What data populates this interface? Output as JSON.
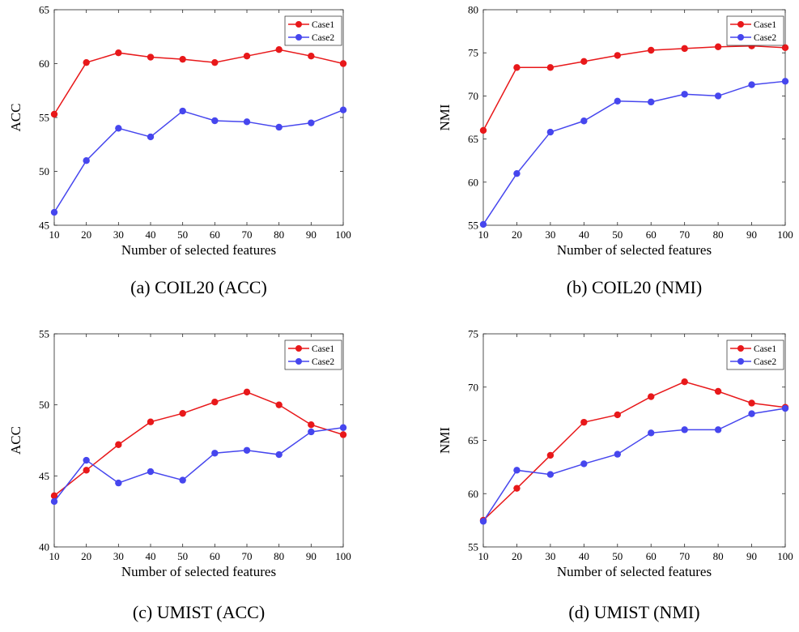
{
  "chart_data": [
    {
      "type": "line",
      "caption": "(a) COIL20 (ACC)",
      "xlabel": "Number of selected features",
      "ylabel": "ACC",
      "xlim": [
        10,
        100
      ],
      "ylim": [
        45,
        65
      ],
      "x": [
        10,
        20,
        30,
        40,
        50,
        60,
        70,
        80,
        90,
        100
      ],
      "xticks": [
        "10",
        "20",
        "30",
        "40",
        "50",
        "60",
        "70",
        "80",
        "90",
        "100"
      ],
      "yticks": [
        "45",
        "50",
        "55",
        "60",
        "65"
      ],
      "grid": false,
      "legend": "top-right",
      "series": [
        {
          "name": "Case1",
          "color": "#e8181a",
          "values": [
            55.3,
            60.1,
            61.0,
            60.6,
            60.4,
            60.1,
            60.7,
            61.3,
            60.7,
            60.0
          ]
        },
        {
          "name": "Case2",
          "color": "#4646ee",
          "values": [
            46.2,
            51.0,
            54.0,
            53.2,
            55.6,
            54.7,
            54.6,
            54.1,
            54.5,
            55.7
          ]
        }
      ]
    },
    {
      "type": "line",
      "caption": "(b) COIL20 (NMI)",
      "xlabel": "Number of selected features",
      "ylabel": "NMI",
      "xlim": [
        10,
        100
      ],
      "ylim": [
        55,
        80
      ],
      "x": [
        10,
        20,
        30,
        40,
        50,
        60,
        70,
        80,
        90,
        100
      ],
      "xticks": [
        "10",
        "20",
        "30",
        "40",
        "50",
        "60",
        "70",
        "80",
        "90",
        "100"
      ],
      "yticks": [
        "55",
        "60",
        "65",
        "70",
        "75",
        "80"
      ],
      "grid": false,
      "legend": "top-right",
      "series": [
        {
          "name": "Case1",
          "color": "#e8181a",
          "values": [
            66.0,
            73.3,
            73.3,
            74.0,
            74.7,
            75.3,
            75.5,
            75.7,
            75.8,
            75.6
          ]
        },
        {
          "name": "Case2",
          "color": "#4646ee",
          "values": [
            55.1,
            61.0,
            65.8,
            67.1,
            69.4,
            69.3,
            70.2,
            70.0,
            71.3,
            71.7
          ]
        }
      ]
    },
    {
      "type": "line",
      "caption": "(c) UMIST (ACC)",
      "xlabel": "Number of selected features",
      "ylabel": "ACC",
      "xlim": [
        10,
        100
      ],
      "ylim": [
        40,
        55
      ],
      "x": [
        10,
        20,
        30,
        40,
        50,
        60,
        70,
        80,
        90,
        100
      ],
      "xticks": [
        "10",
        "20",
        "30",
        "40",
        "50",
        "60",
        "70",
        "80",
        "90",
        "100"
      ],
      "yticks": [
        "40",
        "45",
        "50",
        "55"
      ],
      "grid": false,
      "legend": "top-right",
      "series": [
        {
          "name": "Case1",
          "color": "#e8181a",
          "values": [
            43.6,
            45.4,
            47.2,
            48.8,
            49.4,
            50.2,
            50.9,
            50.0,
            48.6,
            47.9
          ]
        },
        {
          "name": "Case2",
          "color": "#4646ee",
          "values": [
            43.2,
            46.1,
            44.5,
            45.3,
            44.7,
            46.6,
            46.8,
            46.5,
            48.1,
            48.4
          ]
        }
      ]
    },
    {
      "type": "line",
      "caption": "(d) UMIST (NMI)",
      "xlabel": "Number of selected features",
      "ylabel": "NMI",
      "xlim": [
        10,
        100
      ],
      "ylim": [
        55,
        75
      ],
      "x": [
        10,
        20,
        30,
        40,
        50,
        60,
        70,
        80,
        90,
        100
      ],
      "xticks": [
        "10",
        "20",
        "30",
        "40",
        "50",
        "60",
        "70",
        "80",
        "90",
        "100"
      ],
      "yticks": [
        "55",
        "60",
        "65",
        "70",
        "75"
      ],
      "grid": false,
      "legend": "top-right",
      "series": [
        {
          "name": "Case1",
          "color": "#e8181a",
          "values": [
            57.5,
            60.5,
            63.6,
            66.7,
            67.4,
            69.1,
            70.5,
            69.6,
            68.5,
            68.1
          ]
        },
        {
          "name": "Case2",
          "color": "#4646ee",
          "values": [
            57.4,
            62.2,
            61.8,
            62.8,
            63.7,
            65.7,
            66.0,
            66.0,
            67.5,
            68.0
          ]
        }
      ]
    }
  ]
}
